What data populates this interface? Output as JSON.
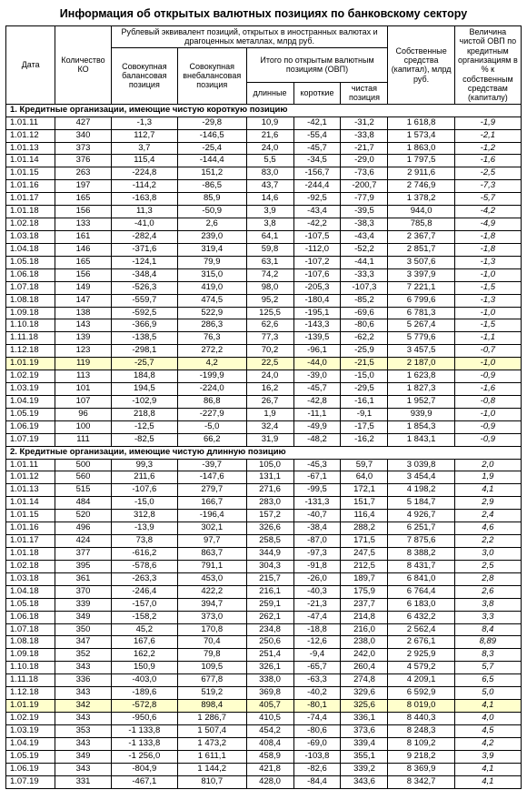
{
  "title": "Информация об открытых валютных позициях по банковскому сектору",
  "header": {
    "date": "Дата",
    "ko": "Количество КО",
    "rub_equiv": "Рублевый эквивалент позиций, открытых в иностранных валютах и драгоценных металлах, млрд руб.",
    "balance": "Совокупная балансовая позиция",
    "offbalance": "Совокупная внебалансовая позиция",
    "ovp_total": "Итого по открытым валютным позициям (ОВП)",
    "long": "длинные",
    "short": "короткие",
    "net": "чистая позиция",
    "capital": "Собственные средства (капитал), млрд руб.",
    "pct": "Величина чистой ОВП по кредитным организациям в % к собственным средствам (капиталу)"
  },
  "sections": [
    {
      "title": "1. Кредитные организации, имеющие чистую короткую позицию",
      "rows": [
        {
          "d": "1.01.11",
          "ko": "427",
          "b": "-1,3",
          "o": "-29,8",
          "l": "10,9",
          "s": "-42,1",
          "n": "-31,2",
          "c": "1 618,8",
          "p": "-1,9"
        },
        {
          "d": "1.01.12",
          "ko": "340",
          "b": "112,7",
          "o": "-146,5",
          "l": "21,6",
          "s": "-55,4",
          "n": "-33,8",
          "c": "1 573,4",
          "p": "-2,1"
        },
        {
          "d": "1.01.13",
          "ko": "373",
          "b": "3,7",
          "o": "-25,4",
          "l": "24,0",
          "s": "-45,7",
          "n": "-21,7",
          "c": "1 863,0",
          "p": "-1,2"
        },
        {
          "d": "1.01.14",
          "ko": "376",
          "b": "115,4",
          "o": "-144,4",
          "l": "5,5",
          "s": "-34,5",
          "n": "-29,0",
          "c": "1 797,5",
          "p": "-1,6"
        },
        {
          "d": "1.01.15",
          "ko": "263",
          "b": "-224,8",
          "o": "151,2",
          "l": "83,0",
          "s": "-156,7",
          "n": "-73,6",
          "c": "2 911,6",
          "p": "-2,5"
        },
        {
          "d": "1.01.16",
          "ko": "197",
          "b": "-114,2",
          "o": "-86,5",
          "l": "43,7",
          "s": "-244,4",
          "n": "-200,7",
          "c": "2 746,9",
          "p": "-7,3"
        },
        {
          "d": "1.01.17",
          "ko": "165",
          "b": "-163,8",
          "o": "85,9",
          "l": "14,6",
          "s": "-92,5",
          "n": "-77,9",
          "c": "1 378,2",
          "p": "-5,7"
        },
        {
          "d": "1.01.18",
          "ko": "156",
          "b": "11,3",
          "o": "-50,9",
          "l": "3,9",
          "s": "-43,4",
          "n": "-39,5",
          "c": "944,0",
          "p": "-4,2"
        },
        {
          "d": "1.02.18",
          "ko": "133",
          "b": "-41,0",
          "o": "2,6",
          "l": "3,8",
          "s": "-42,2",
          "n": "-38,3",
          "c": "785,8",
          "p": "-4,9"
        },
        {
          "d": "1.03.18",
          "ko": "161",
          "b": "-282,4",
          "o": "239,0",
          "l": "64,1",
          "s": "-107,5",
          "n": "-43,4",
          "c": "2 367,7",
          "p": "-1,8"
        },
        {
          "d": "1.04.18",
          "ko": "146",
          "b": "-371,6",
          "o": "319,4",
          "l": "59,8",
          "s": "-112,0",
          "n": "-52,2",
          "c": "2 851,7",
          "p": "-1,8"
        },
        {
          "d": "1.05.18",
          "ko": "165",
          "b": "-124,1",
          "o": "79,9",
          "l": "63,1",
          "s": "-107,2",
          "n": "-44,1",
          "c": "3 507,6",
          "p": "-1,3"
        },
        {
          "d": "1.06.18",
          "ko": "156",
          "b": "-348,4",
          "o": "315,0",
          "l": "74,2",
          "s": "-107,6",
          "n": "-33,3",
          "c": "3 397,9",
          "p": "-1,0"
        },
        {
          "d": "1.07.18",
          "ko": "149",
          "b": "-526,3",
          "o": "419,0",
          "l": "98,0",
          "s": "-205,3",
          "n": "-107,3",
          "c": "7 221,1",
          "p": "-1,5"
        },
        {
          "d": "1.08.18",
          "ko": "147",
          "b": "-559,7",
          "o": "474,5",
          "l": "95,2",
          "s": "-180,4",
          "n": "-85,2",
          "c": "6 799,6",
          "p": "-1,3"
        },
        {
          "d": "1.09.18",
          "ko": "138",
          "b": "-592,5",
          "o": "522,9",
          "l": "125,5",
          "s": "-195,1",
          "n": "-69,6",
          "c": "6 781,3",
          "p": "-1,0"
        },
        {
          "d": "1.10.18",
          "ko": "143",
          "b": "-366,9",
          "o": "286,3",
          "l": "62,6",
          "s": "-143,3",
          "n": "-80,6",
          "c": "5 267,4",
          "p": "-1,5"
        },
        {
          "d": "1.11.18",
          "ko": "139",
          "b": "-138,5",
          "o": "76,3",
          "l": "77,3",
          "s": "-139,5",
          "n": "-62,2",
          "c": "5 779,6",
          "p": "-1,1"
        },
        {
          "d": "1.12.18",
          "ko": "123",
          "b": "-298,1",
          "o": "272,2",
          "l": "70,2",
          "s": "-96,1",
          "n": "-25,9",
          "c": "3 457,5",
          "p": "-0,7"
        },
        {
          "d": "1.01.19",
          "ko": "119",
          "b": "-25,7",
          "o": "4,2",
          "l": "22,5",
          "s": "-44,0",
          "n": "-21,5",
          "c": "2 187,0",
          "p": "-1,0",
          "hl": true
        },
        {
          "d": "1.02.19",
          "ko": "113",
          "b": "184,8",
          "o": "-199,9",
          "l": "24,0",
          "s": "-39,0",
          "n": "-15,0",
          "c": "1 623,8",
          "p": "-0,9"
        },
        {
          "d": "1.03.19",
          "ko": "101",
          "b": "194,5",
          "o": "-224,0",
          "l": "16,2",
          "s": "-45,7",
          "n": "-29,5",
          "c": "1 827,3",
          "p": "-1,6"
        },
        {
          "d": "1.04.19",
          "ko": "107",
          "b": "-102,9",
          "o": "86,8",
          "l": "26,7",
          "s": "-42,8",
          "n": "-16,1",
          "c": "1 952,7",
          "p": "-0,8"
        },
        {
          "d": "1.05.19",
          "ko": "96",
          "b": "218,8",
          "o": "-227,9",
          "l": "1,9",
          "s": "-11,1",
          "n": "-9,1",
          "c": "939,9",
          "p": "-1,0"
        },
        {
          "d": "1.06.19",
          "ko": "100",
          "b": "-12,5",
          "o": "-5,0",
          "l": "32,4",
          "s": "-49,9",
          "n": "-17,5",
          "c": "1 854,3",
          "p": "-0,9"
        },
        {
          "d": "1.07.19",
          "ko": "111",
          "b": "-82,5",
          "o": "66,2",
          "l": "31,9",
          "s": "-48,2",
          "n": "-16,2",
          "c": "1 843,1",
          "p": "-0,9"
        }
      ]
    },
    {
      "title": "2. Кредитные организации, имеющие чистую длинную позицию",
      "rows": [
        {
          "d": "1.01.11",
          "ko": "500",
          "b": "99,3",
          "o": "-39,7",
          "l": "105,0",
          "s": "-45,3",
          "n": "59,7",
          "c": "3 039,8",
          "p": "2,0"
        },
        {
          "d": "1.01.12",
          "ko": "560",
          "b": "211,6",
          "o": "-147,6",
          "l": "131,1",
          "s": "-67,1",
          "n": "64,0",
          "c": "3 454,4",
          "p": "1,9"
        },
        {
          "d": "1.01.13",
          "ko": "515",
          "b": "-107,6",
          "o": "279,7",
          "l": "271,6",
          "s": "-99,5",
          "n": "172,1",
          "c": "4 198,2",
          "p": "4,1"
        },
        {
          "d": "1.01.14",
          "ko": "484",
          "b": "-15,0",
          "o": "166,7",
          "l": "283,0",
          "s": "-131,3",
          "n": "151,7",
          "c": "5 184,7",
          "p": "2,9"
        },
        {
          "d": "1.01.15",
          "ko": "520",
          "b": "312,8",
          "o": "-196,4",
          "l": "157,2",
          "s": "-40,7",
          "n": "116,4",
          "c": "4 926,7",
          "p": "2,4"
        },
        {
          "d": "1.01.16",
          "ko": "496",
          "b": "-13,9",
          "o": "302,1",
          "l": "326,6",
          "s": "-38,4",
          "n": "288,2",
          "c": "6 251,7",
          "p": "4,6"
        },
        {
          "d": "1.01.17",
          "ko": "424",
          "b": "73,8",
          "o": "97,7",
          "l": "258,5",
          "s": "-87,0",
          "n": "171,5",
          "c": "7 875,6",
          "p": "2,2"
        },
        {
          "d": "1.01.18",
          "ko": "377",
          "b": "-616,2",
          "o": "863,7",
          "l": "344,9",
          "s": "-97,3",
          "n": "247,5",
          "c": "8 388,2",
          "p": "3,0"
        },
        {
          "d": "1.02.18",
          "ko": "395",
          "b": "-578,6",
          "o": "791,1",
          "l": "304,3",
          "s": "-91,8",
          "n": "212,5",
          "c": "8 431,7",
          "p": "2,5"
        },
        {
          "d": "1.03.18",
          "ko": "361",
          "b": "-263,3",
          "o": "453,0",
          "l": "215,7",
          "s": "-26,0",
          "n": "189,7",
          "c": "6 841,0",
          "p": "2,8"
        },
        {
          "d": "1.04.18",
          "ko": "370",
          "b": "-246,4",
          "o": "422,2",
          "l": "216,1",
          "s": "-40,3",
          "n": "175,9",
          "c": "6 764,4",
          "p": "2,6"
        },
        {
          "d": "1.05.18",
          "ko": "339",
          "b": "-157,0",
          "o": "394,7",
          "l": "259,1",
          "s": "-21,3",
          "n": "237,7",
          "c": "6 183,0",
          "p": "3,8"
        },
        {
          "d": "1.06.18",
          "ko": "349",
          "b": "-158,2",
          "o": "373,0",
          "l": "262,1",
          "s": "-47,4",
          "n": "214,8",
          "c": "6 432,2",
          "p": "3,3"
        },
        {
          "d": "1.07.18",
          "ko": "350",
          "b": "45,2",
          "o": "170,8",
          "l": "234,8",
          "s": "-18,8",
          "n": "216,0",
          "c": "2 562,4",
          "p": "8,4"
        },
        {
          "d": "1.08.18",
          "ko": "347",
          "b": "167,6",
          "o": "70,4",
          "l": "250,6",
          "s": "-12,6",
          "n": "238,0",
          "c": "2 676,1",
          "p": "8,89"
        },
        {
          "d": "1.09.18",
          "ko": "352",
          "b": "162,2",
          "o": "79,8",
          "l": "251,4",
          "s": "-9,4",
          "n": "242,0",
          "c": "2 925,9",
          "p": "8,3"
        },
        {
          "d": "1.10.18",
          "ko": "343",
          "b": "150,9",
          "o": "109,5",
          "l": "326,1",
          "s": "-65,7",
          "n": "260,4",
          "c": "4 579,2",
          "p": "5,7"
        },
        {
          "d": "1.11.18",
          "ko": "336",
          "b": "-403,0",
          "o": "677,8",
          "l": "338,0",
          "s": "-63,3",
          "n": "274,8",
          "c": "4 209,1",
          "p": "6,5"
        },
        {
          "d": "1.12.18",
          "ko": "343",
          "b": "-189,6",
          "o": "519,2",
          "l": "369,8",
          "s": "-40,2",
          "n": "329,6",
          "c": "6 592,9",
          "p": "5,0"
        },
        {
          "d": "1.01.19",
          "ko": "342",
          "b": "-572,8",
          "o": "898,4",
          "l": "405,7",
          "s": "-80,1",
          "n": "325,6",
          "c": "8 019,0",
          "p": "4,1",
          "hl": true
        },
        {
          "d": "1.02.19",
          "ko": "343",
          "b": "-950,6",
          "o": "1 286,7",
          "l": "410,5",
          "s": "-74,4",
          "n": "336,1",
          "c": "8 440,3",
          "p": "4,0"
        },
        {
          "d": "1.03.19",
          "ko": "353",
          "b": "-1 133,8",
          "o": "1 507,4",
          "l": "454,2",
          "s": "-80,6",
          "n": "373,6",
          "c": "8 248,3",
          "p": "4,5"
        },
        {
          "d": "1.04.19",
          "ko": "343",
          "b": "-1 133,8",
          "o": "1 473,2",
          "l": "408,4",
          "s": "-69,0",
          "n": "339,4",
          "c": "8 109,2",
          "p": "4,2"
        },
        {
          "d": "1.05.19",
          "ko": "349",
          "b": "-1 256,0",
          "o": "1 611,1",
          "l": "458,9",
          "s": "-103,8",
          "n": "355,1",
          "c": "9 218,2",
          "p": "3,9"
        },
        {
          "d": "1.06.19",
          "ko": "343",
          "b": "-804,9",
          "o": "1 144,2",
          "l": "421,8",
          "s": "-82,6",
          "n": "339,2",
          "c": "8 369,9",
          "p": "4,1"
        },
        {
          "d": "1.07.19",
          "ko": "331",
          "b": "-467,1",
          "o": "810,7",
          "l": "428,0",
          "s": "-84,4",
          "n": "343,6",
          "c": "8 342,7",
          "p": "4,1"
        }
      ]
    }
  ]
}
